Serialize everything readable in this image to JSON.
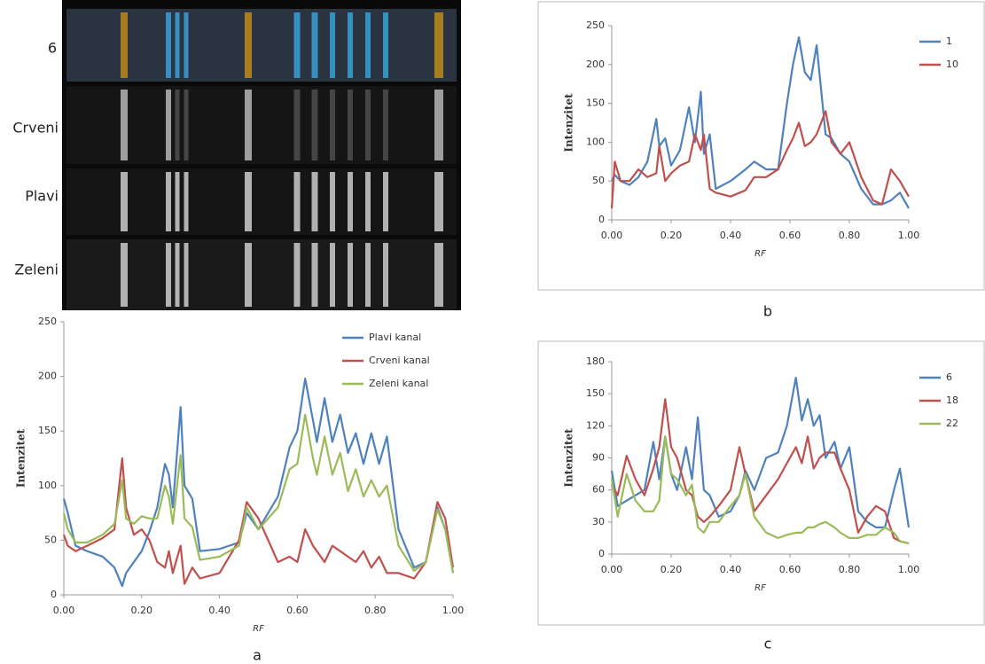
{
  "image": {
    "labels": [
      "6",
      "Crveni",
      "Plavi",
      "Zeleni"
    ]
  },
  "panel_labels": [
    "a",
    "b",
    "c"
  ],
  "chart_data": [
    {
      "type": "line",
      "ylabel": "Intenzitet",
      "xlabel": "RF",
      "legend": "upper right",
      "x": [
        0,
        0.01,
        0.03,
        0.06,
        0.1,
        0.13,
        0.15,
        0.16,
        0.18,
        0.2,
        0.22,
        0.24,
        0.26,
        0.27,
        0.28,
        0.3,
        0.31,
        0.33,
        0.35,
        0.4,
        0.45,
        0.47,
        0.5,
        0.55,
        0.58,
        0.6,
        0.62,
        0.64,
        0.65,
        0.67,
        0.69,
        0.71,
        0.73,
        0.75,
        0.77,
        0.79,
        0.81,
        0.83,
        0.86,
        0.9,
        0.93,
        0.96,
        0.98,
        1.0
      ],
      "series": [
        {
          "name": "Plavi kanal",
          "color": "#4f81bd",
          "values": [
            88,
            75,
            45,
            40,
            35,
            25,
            8,
            20,
            30,
            40,
            58,
            80,
            120,
            110,
            80,
            172,
            100,
            88,
            40,
            42,
            48,
            75,
            60,
            90,
            135,
            150,
            198,
            160,
            140,
            180,
            140,
            165,
            130,
            148,
            120,
            148,
            120,
            145,
            60,
            25,
            30,
            80,
            60,
            20
          ]
        },
        {
          "name": "Crveni kanal",
          "color": "#c0504d",
          "values": [
            55,
            45,
            40,
            45,
            52,
            60,
            125,
            80,
            55,
            60,
            50,
            30,
            25,
            40,
            20,
            45,
            10,
            25,
            15,
            20,
            50,
            85,
            70,
            30,
            35,
            30,
            60,
            45,
            40,
            30,
            45,
            40,
            35,
            30,
            40,
            25,
            35,
            20,
            20,
            15,
            30,
            85,
            70,
            25
          ]
        },
        {
          "name": "Zeleni kanal",
          "color": "#9bbb59",
          "values": [
            75,
            60,
            48,
            48,
            55,
            65,
            105,
            70,
            65,
            72,
            70,
            70,
            100,
            90,
            65,
            128,
            70,
            62,
            32,
            35,
            45,
            80,
            60,
            80,
            115,
            120,
            165,
            125,
            110,
            145,
            110,
            130,
            95,
            115,
            90,
            105,
            90,
            100,
            45,
            22,
            30,
            78,
            60,
            20
          ]
        }
      ],
      "xlim": [
        0,
        1
      ],
      "ylim": [
        0,
        250
      ],
      "xticks": [
        {
          "value": 0,
          "label": "0.00"
        },
        {
          "value": 0.2,
          "label": "0.20"
        },
        {
          "value": 0.4,
          "label": "0.40"
        },
        {
          "value": 0.6,
          "label": "0.60"
        },
        {
          "value": 0.8,
          "label": "0.80"
        },
        {
          "value": 1,
          "label": "1.00"
        }
      ],
      "yticks": [
        0,
        50,
        100,
        150,
        200,
        250
      ]
    },
    {
      "type": "line",
      "ylabel": "Intenzitet",
      "xlabel": "RF",
      "legend": "outside right",
      "x": [
        0,
        0.01,
        0.03,
        0.06,
        0.09,
        0.12,
        0.15,
        0.16,
        0.18,
        0.2,
        0.23,
        0.26,
        0.28,
        0.3,
        0.31,
        0.33,
        0.35,
        0.4,
        0.45,
        0.48,
        0.52,
        0.56,
        0.59,
        0.61,
        0.63,
        0.65,
        0.67,
        0.69,
        0.72,
        0.74,
        0.77,
        0.8,
        0.84,
        0.88,
        0.91,
        0.94,
        0.97,
        1.0
      ],
      "series": [
        {
          "name": "1",
          "color": "#4f81bd",
          "values": [
            50,
            58,
            50,
            45,
            55,
            75,
            130,
            95,
            105,
            70,
            90,
            145,
            100,
            165,
            85,
            110,
            40,
            50,
            65,
            75,
            65,
            65,
            150,
            200,
            235,
            190,
            180,
            225,
            110,
            105,
            85,
            75,
            40,
            20,
            20,
            25,
            35,
            15
          ]
        },
        {
          "name": "10",
          "color": "#c0504d",
          "values": [
            15,
            75,
            50,
            50,
            65,
            55,
            60,
            95,
            50,
            60,
            70,
            75,
            110,
            90,
            110,
            40,
            35,
            30,
            38,
            55,
            55,
            65,
            90,
            105,
            125,
            95,
            100,
            110,
            140,
            100,
            85,
            100,
            55,
            25,
            20,
            65,
            50,
            30
          ]
        }
      ],
      "xlim": [
        0,
        1
      ],
      "ylim": [
        0,
        250
      ],
      "xticks": [
        {
          "value": 0,
          "label": "0.00"
        },
        {
          "value": 0.2,
          "label": "0.20"
        },
        {
          "value": 0.4,
          "label": "0.40"
        },
        {
          "value": 0.6,
          "label": "0.60"
        },
        {
          "value": 0.8,
          "label": "0.80"
        },
        {
          "value": 1,
          "label": "1.00"
        }
      ],
      "yticks": [
        0,
        50,
        100,
        150,
        200,
        250
      ]
    },
    {
      "type": "line",
      "ylabel": "Intenzitet",
      "xlabel": "RF",
      "legend": "outside right",
      "x": [
        0,
        0.02,
        0.05,
        0.08,
        0.11,
        0.14,
        0.16,
        0.18,
        0.2,
        0.22,
        0.25,
        0.27,
        0.29,
        0.31,
        0.33,
        0.36,
        0.4,
        0.43,
        0.45,
        0.48,
        0.52,
        0.56,
        0.59,
        0.62,
        0.64,
        0.66,
        0.68,
        0.7,
        0.72,
        0.75,
        0.77,
        0.8,
        0.83,
        0.86,
        0.89,
        0.92,
        0.95,
        0.97,
        1.0
      ],
      "series": [
        {
          "name": "6",
          "color": "#4f81bd",
          "values": [
            78,
            45,
            50,
            55,
            60,
            105,
            70,
            110,
            75,
            60,
            100,
            70,
            128,
            60,
            55,
            35,
            40,
            55,
            78,
            60,
            90,
            95,
            120,
            165,
            125,
            145,
            120,
            130,
            90,
            105,
            80,
            100,
            40,
            30,
            25,
            25,
            60,
            80,
            25
          ]
        },
        {
          "name": "18",
          "color": "#c0504d",
          "values": [
            65,
            55,
            92,
            70,
            55,
            80,
            100,
            145,
            100,
            90,
            60,
            55,
            35,
            30,
            35,
            45,
            60,
            100,
            75,
            40,
            55,
            70,
            85,
            100,
            85,
            110,
            80,
            90,
            95,
            95,
            80,
            60,
            20,
            35,
            45,
            40,
            15,
            12,
            10
          ]
        },
        {
          "name": "22",
          "color": "#9bbb59",
          "values": [
            70,
            35,
            75,
            50,
            40,
            40,
            50,
            110,
            75,
            70,
            55,
            65,
            25,
            20,
            30,
            30,
            45,
            55,
            75,
            35,
            20,
            15,
            18,
            20,
            20,
            25,
            25,
            28,
            30,
            25,
            20,
            15,
            15,
            18,
            18,
            25,
            20,
            12,
            10
          ]
        }
      ],
      "xlim": [
        0,
        1
      ],
      "ylim": [
        0,
        180
      ],
      "xticks": [
        {
          "value": 0,
          "label": "0.00"
        },
        {
          "value": 0.2,
          "label": "0.20"
        },
        {
          "value": 0.4,
          "label": "0.40"
        },
        {
          "value": 0.6,
          "label": "0.60"
        },
        {
          "value": 0.8,
          "label": "0.80"
        },
        {
          "value": 1,
          "label": "1.00"
        }
      ],
      "yticks": [
        0,
        30,
        60,
        90,
        120,
        150,
        180
      ]
    }
  ]
}
